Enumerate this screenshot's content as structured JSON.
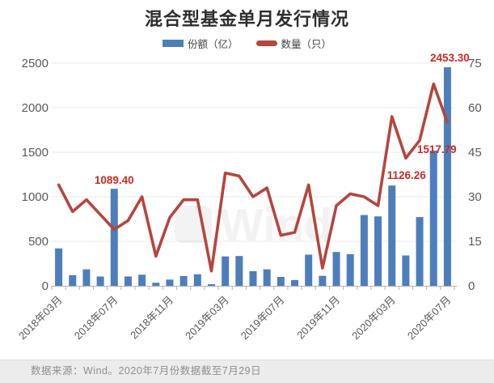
{
  "title": "混合型基金单月发行情况",
  "legend": {
    "items": [
      {
        "label": "份额（亿）",
        "type": "bar",
        "color": "#4d7ebc"
      },
      {
        "label": "数量（只）",
        "type": "line",
        "color": "#b6453e"
      }
    ]
  },
  "watermark": "Wind",
  "footer": "数据来源：Wind。2020年7月份数据截至7月29日",
  "colors": {
    "bar": "#4d7ebc",
    "line": "#b6453e",
    "data_label": "#cb2a24",
    "axis_text": "#595959",
    "gridline": "#ebebeb",
    "axis_line": "#b3b3b3",
    "title_text": "#2e2e2e",
    "footer_bg": "#ececec",
    "footer_text": "#8f8f8f",
    "watermark_gray": "#555555"
  },
  "chart_data": {
    "type": "combo",
    "title": "混合型基金单月发行情况",
    "grid": "horizontal",
    "legend_position": "top",
    "categories": [
      "2018年03月",
      "2018年04月",
      "2018年05月",
      "2018年06月",
      "2018年07月",
      "2018年08月",
      "2018年09月",
      "2018年10月",
      "2018年11月",
      "2018年12月",
      "2019年01月",
      "2019年02月",
      "2019年03月",
      "2019年04月",
      "2019年05月",
      "2019年06月",
      "2019年07月",
      "2019年08月",
      "2019年09月",
      "2019年10月",
      "2019年11月",
      "2019年12月",
      "2020年01月",
      "2020年02月",
      "2020年03月",
      "2020年04月",
      "2020年05月",
      "2020年06月",
      "2020年07月"
    ],
    "x_axis_shown_labels": [
      "2018年03月",
      "2018年07月",
      "2018年11月",
      "2019年03月",
      "2019年07月",
      "2019年11月",
      "2020年03月",
      "2020年07月"
    ],
    "series": [
      {
        "name": "份额（亿）",
        "type": "bar",
        "axis": "left",
        "values": [
          420,
          120,
          185,
          105,
          1089.4,
          105,
          125,
          35,
          70,
          110,
          130,
          18,
          330,
          335,
          165,
          185,
          100,
          65,
          350,
          112,
          380,
          355,
          795,
          780,
          1126.26,
          341,
          772,
          1517.79,
          2453.3
        ]
      },
      {
        "name": "数量（只）",
        "type": "line",
        "axis": "right",
        "values": [
          34,
          25,
          29,
          24,
          19,
          22,
          30,
          10,
          23,
          29,
          29,
          5,
          38,
          37,
          30,
          33,
          17,
          18,
          34,
          6,
          27,
          31,
          30,
          27,
          57,
          43,
          49,
          68,
          55
        ]
      }
    ],
    "left_axis": {
      "min": 0,
      "max": 2500,
      "step": 500,
      "ticks": [
        0,
        500,
        1000,
        1500,
        2000,
        2500
      ]
    },
    "right_axis": {
      "min": 0,
      "max": 75,
      "step": 15,
      "ticks": [
        0,
        15,
        30,
        45,
        60,
        75
      ]
    },
    "data_labels": [
      {
        "category": "2018年07月",
        "index": 4,
        "text": "1089.40"
      },
      {
        "category": "2020年03月",
        "index": 24,
        "text": "1126.26"
      },
      {
        "category": "2020年06月",
        "index": 27,
        "text": "1517.79"
      },
      {
        "category": "2020年07月",
        "index": 28,
        "text": "2453.30"
      }
    ]
  }
}
